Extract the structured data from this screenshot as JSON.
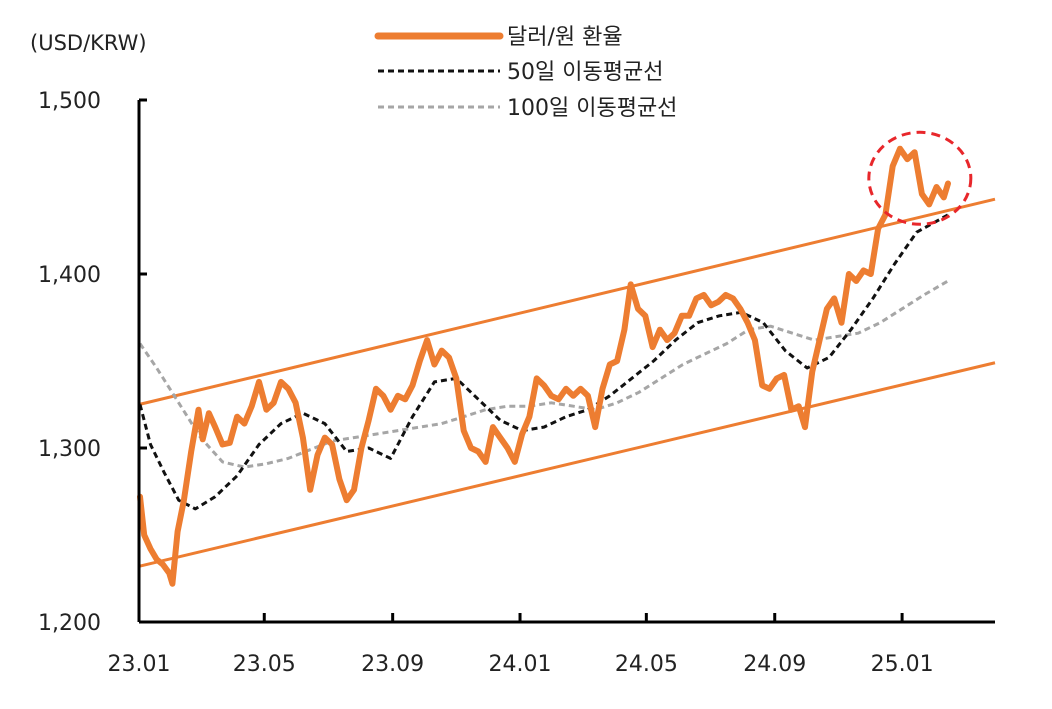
{
  "chart_data": {
    "type": "line",
    "y_unit_label": "(USD/KRW)",
    "x_tick_labels": [
      "23.01",
      "23.05",
      "23.09",
      "24.01",
      "24.05",
      "24.09",
      "25.01"
    ],
    "y_tick_labels": [
      "1,200",
      "1,300",
      "1,400",
      "1,500"
    ],
    "ylim": [
      1200,
      1500
    ],
    "yticks": [
      1200,
      1300,
      1400,
      1500
    ],
    "xlim": [
      "2023-01-01",
      "2025-03-31"
    ],
    "grid": false,
    "legend_position": "top-center",
    "series": [
      {
        "name": "달러/원 환율",
        "color": "#ED7D31",
        "style": "solid",
        "points": [
          [
            "2023-01-02",
            1272
          ],
          [
            "2023-01-06",
            1250
          ],
          [
            "2023-01-12",
            1242
          ],
          [
            "2023-01-18",
            1236
          ],
          [
            "2023-01-24",
            1233
          ],
          [
            "2023-01-30",
            1228
          ],
          [
            "2023-02-02",
            1222
          ],
          [
            "2023-02-07",
            1252
          ],
          [
            "2023-02-13",
            1270
          ],
          [
            "2023-02-20",
            1298
          ],
          [
            "2023-02-27",
            1322
          ],
          [
            "2023-03-03",
            1305
          ],
          [
            "2023-03-09",
            1320
          ],
          [
            "2023-03-15",
            1312
          ],
          [
            "2023-03-22",
            1302
          ],
          [
            "2023-03-29",
            1303
          ],
          [
            "2023-04-05",
            1318
          ],
          [
            "2023-04-12",
            1314
          ],
          [
            "2023-04-19",
            1324
          ],
          [
            "2023-04-26",
            1338
          ],
          [
            "2023-05-03",
            1322
          ],
          [
            "2023-05-10",
            1326
          ],
          [
            "2023-05-17",
            1338
          ],
          [
            "2023-05-24",
            1334
          ],
          [
            "2023-05-31",
            1326
          ],
          [
            "2023-06-07",
            1306
          ],
          [
            "2023-06-14",
            1276
          ],
          [
            "2023-06-21",
            1296
          ],
          [
            "2023-06-28",
            1306
          ],
          [
            "2023-07-05",
            1302
          ],
          [
            "2023-07-12",
            1282
          ],
          [
            "2023-07-19",
            1270
          ],
          [
            "2023-07-26",
            1276
          ],
          [
            "2023-08-02",
            1300
          ],
          [
            "2023-08-09",
            1316
          ],
          [
            "2023-08-16",
            1334
          ],
          [
            "2023-08-23",
            1330
          ],
          [
            "2023-08-30",
            1322
          ],
          [
            "2023-09-06",
            1330
          ],
          [
            "2023-09-13",
            1328
          ],
          [
            "2023-09-20",
            1336
          ],
          [
            "2023-09-27",
            1350
          ],
          [
            "2023-10-04",
            1362
          ],
          [
            "2023-10-11",
            1348
          ],
          [
            "2023-10-18",
            1356
          ],
          [
            "2023-10-25",
            1352
          ],
          [
            "2023-11-01",
            1340
          ],
          [
            "2023-11-08",
            1310
          ],
          [
            "2023-11-15",
            1300
          ],
          [
            "2023-11-22",
            1298
          ],
          [
            "2023-11-29",
            1292
          ],
          [
            "2023-12-06",
            1312
          ],
          [
            "2023-12-13",
            1306
          ],
          [
            "2023-12-20",
            1300
          ],
          [
            "2023-12-27",
            1292
          ],
          [
            "2024-01-03",
            1308
          ],
          [
            "2024-01-10",
            1318
          ],
          [
            "2024-01-17",
            1340
          ],
          [
            "2024-01-24",
            1336
          ],
          [
            "2024-01-31",
            1330
          ],
          [
            "2024-02-07",
            1328
          ],
          [
            "2024-02-14",
            1334
          ],
          [
            "2024-02-21",
            1330
          ],
          [
            "2024-02-28",
            1334
          ],
          [
            "2024-03-06",
            1330
          ],
          [
            "2024-03-13",
            1312
          ],
          [
            "2024-03-20",
            1334
          ],
          [
            "2024-03-27",
            1348
          ],
          [
            "2024-04-03",
            1350
          ],
          [
            "2024-04-10",
            1368
          ],
          [
            "2024-04-16",
            1394
          ],
          [
            "2024-04-23",
            1380
          ],
          [
            "2024-04-30",
            1376
          ],
          [
            "2024-05-07",
            1358
          ],
          [
            "2024-05-14",
            1368
          ],
          [
            "2024-05-21",
            1362
          ],
          [
            "2024-05-28",
            1366
          ],
          [
            "2024-06-04",
            1376
          ],
          [
            "2024-06-11",
            1376
          ],
          [
            "2024-06-18",
            1386
          ],
          [
            "2024-06-25",
            1388
          ],
          [
            "2024-07-02",
            1382
          ],
          [
            "2024-07-09",
            1384
          ],
          [
            "2024-07-16",
            1388
          ],
          [
            "2024-07-23",
            1386
          ],
          [
            "2024-07-30",
            1380
          ],
          [
            "2024-08-06",
            1372
          ],
          [
            "2024-08-13",
            1362
          ],
          [
            "2024-08-20",
            1336
          ],
          [
            "2024-08-27",
            1334
          ],
          [
            "2024-09-03",
            1340
          ],
          [
            "2024-09-10",
            1342
          ],
          [
            "2024-09-17",
            1322
          ],
          [
            "2024-09-24",
            1324
          ],
          [
            "2024-09-30",
            1312
          ],
          [
            "2024-10-07",
            1344
          ],
          [
            "2024-10-14",
            1362
          ],
          [
            "2024-10-21",
            1380
          ],
          [
            "2024-10-28",
            1386
          ],
          [
            "2024-11-04",
            1372
          ],
          [
            "2024-11-11",
            1400
          ],
          [
            "2024-11-18",
            1396
          ],
          [
            "2024-11-25",
            1402
          ],
          [
            "2024-12-02",
            1400
          ],
          [
            "2024-12-09",
            1426
          ],
          [
            "2024-12-16",
            1434
          ],
          [
            "2024-12-23",
            1462
          ],
          [
            "2024-12-30",
            1472
          ],
          [
            "2025-01-06",
            1466
          ],
          [
            "2025-01-13",
            1470
          ],
          [
            "2025-01-20",
            1446
          ],
          [
            "2025-01-27",
            1440
          ],
          [
            "2025-02-03",
            1450
          ],
          [
            "2025-02-10",
            1444
          ],
          [
            "2025-02-14",
            1452
          ]
        ]
      },
      {
        "name": "50일 이동평균선",
        "color": "#111111",
        "style": "dotted",
        "points": [
          [
            "2023-01-02",
            1325
          ],
          [
            "2023-01-12",
            1302
          ],
          [
            "2023-01-25",
            1286
          ],
          [
            "2023-02-08",
            1270
          ],
          [
            "2023-02-24",
            1265
          ],
          [
            "2023-03-15",
            1272
          ],
          [
            "2023-04-05",
            1284
          ],
          [
            "2023-04-26",
            1302
          ],
          [
            "2023-05-17",
            1314
          ],
          [
            "2023-06-07",
            1320
          ],
          [
            "2023-06-28",
            1314
          ],
          [
            "2023-07-19",
            1298
          ],
          [
            "2023-08-09",
            1300
          ],
          [
            "2023-08-30",
            1294
          ],
          [
            "2023-09-20",
            1318
          ],
          [
            "2023-10-11",
            1338
          ],
          [
            "2023-11-01",
            1340
          ],
          [
            "2023-11-22",
            1328
          ],
          [
            "2023-12-13",
            1316
          ],
          [
            "2024-01-03",
            1310
          ],
          [
            "2024-01-24",
            1312
          ],
          [
            "2024-02-14",
            1318
          ],
          [
            "2024-03-06",
            1322
          ],
          [
            "2024-03-27",
            1330
          ],
          [
            "2024-04-17",
            1340
          ],
          [
            "2024-05-08",
            1350
          ],
          [
            "2024-05-29",
            1362
          ],
          [
            "2024-06-19",
            1372
          ],
          [
            "2024-07-10",
            1376
          ],
          [
            "2024-07-31",
            1378
          ],
          [
            "2024-08-21",
            1372
          ],
          [
            "2024-09-11",
            1356
          ],
          [
            "2024-10-02",
            1346
          ],
          [
            "2024-10-23",
            1352
          ],
          [
            "2024-11-13",
            1368
          ],
          [
            "2024-12-04",
            1386
          ],
          [
            "2024-12-25",
            1406
          ],
          [
            "2025-01-15",
            1424
          ],
          [
            "2025-02-14",
            1434
          ]
        ]
      },
      {
        "name": "100일 이동평균선",
        "color": "#A6A6A6",
        "style": "dotted",
        "points": [
          [
            "2023-01-02",
            1360
          ],
          [
            "2023-01-18",
            1346
          ],
          [
            "2023-02-08",
            1326
          ],
          [
            "2023-03-01",
            1306
          ],
          [
            "2023-03-22",
            1292
          ],
          [
            "2023-04-12",
            1289
          ],
          [
            "2023-05-03",
            1291
          ],
          [
            "2023-05-24",
            1294
          ],
          [
            "2023-06-14",
            1299
          ],
          [
            "2023-07-05",
            1304
          ],
          [
            "2023-07-26",
            1306
          ],
          [
            "2023-08-16",
            1308
          ],
          [
            "2023-09-06",
            1310
          ],
          [
            "2023-09-27",
            1312
          ],
          [
            "2023-10-18",
            1314
          ],
          [
            "2023-11-08",
            1318
          ],
          [
            "2023-11-29",
            1322
          ],
          [
            "2023-12-20",
            1324
          ],
          [
            "2024-01-10",
            1324
          ],
          [
            "2024-01-31",
            1326
          ],
          [
            "2024-02-21",
            1324
          ],
          [
            "2024-03-13",
            1322
          ],
          [
            "2024-04-03",
            1326
          ],
          [
            "2024-04-24",
            1332
          ],
          [
            "2024-05-15",
            1340
          ],
          [
            "2024-06-05",
            1348
          ],
          [
            "2024-06-26",
            1354
          ],
          [
            "2024-07-17",
            1360
          ],
          [
            "2024-08-07",
            1368
          ],
          [
            "2024-08-28",
            1370
          ],
          [
            "2024-09-18",
            1366
          ],
          [
            "2024-10-09",
            1362
          ],
          [
            "2024-10-30",
            1364
          ],
          [
            "2024-11-20",
            1366
          ],
          [
            "2024-12-11",
            1372
          ],
          [
            "2025-01-01",
            1380
          ],
          [
            "2025-01-22",
            1388
          ],
          [
            "2025-02-14",
            1396
          ]
        ]
      }
    ],
    "channel_lines": [
      {
        "color": "#ED7D31",
        "from": [
          "2023-01-01",
          1325
        ],
        "to": [
          "2025-03-31",
          1443
        ]
      },
      {
        "color": "#ED7D31",
        "from": [
          "2023-01-01",
          1232
        ],
        "to": [
          "2025-03-31",
          1349
        ]
      }
    ],
    "highlight": {
      "shape": "dashed-circle",
      "color": "#E8272B",
      "center": [
        "2025-01-18",
        1455
      ]
    }
  }
}
